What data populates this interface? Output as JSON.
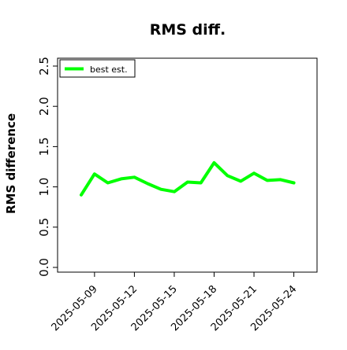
{
  "chart_data": {
    "type": "line",
    "title": "RMS diff.",
    "xlabel": "",
    "ylabel": "RMS difference",
    "x": [
      "2025-05-08",
      "2025-05-09",
      "2025-05-10",
      "2025-05-11",
      "2025-05-12",
      "2025-05-13",
      "2025-05-14",
      "2025-05-15",
      "2025-05-16",
      "2025-05-17",
      "2025-05-18",
      "2025-05-19",
      "2025-05-20",
      "2025-05-21",
      "2025-05-22",
      "2025-05-23",
      "2025-05-24"
    ],
    "x_ticks": [
      "2025-05-09",
      "2025-05-12",
      "2025-05-15",
      "2025-05-18",
      "2025-05-21",
      "2025-05-24"
    ],
    "y_ticks": [
      "0.0",
      "0.5",
      "1.0",
      "1.5",
      "2.0",
      "2.5"
    ],
    "ylim": [
      0,
      2.6
    ],
    "grid": false,
    "legend_position": "top-left",
    "series": [
      {
        "name": "best est.",
        "color": "#00ff00",
        "values": [
          0.9,
          1.16,
          1.05,
          1.1,
          1.12,
          1.04,
          0.97,
          0.94,
          1.06,
          1.05,
          1.3,
          1.14,
          1.07,
          1.17,
          1.08,
          1.09,
          1.05
        ]
      }
    ]
  }
}
